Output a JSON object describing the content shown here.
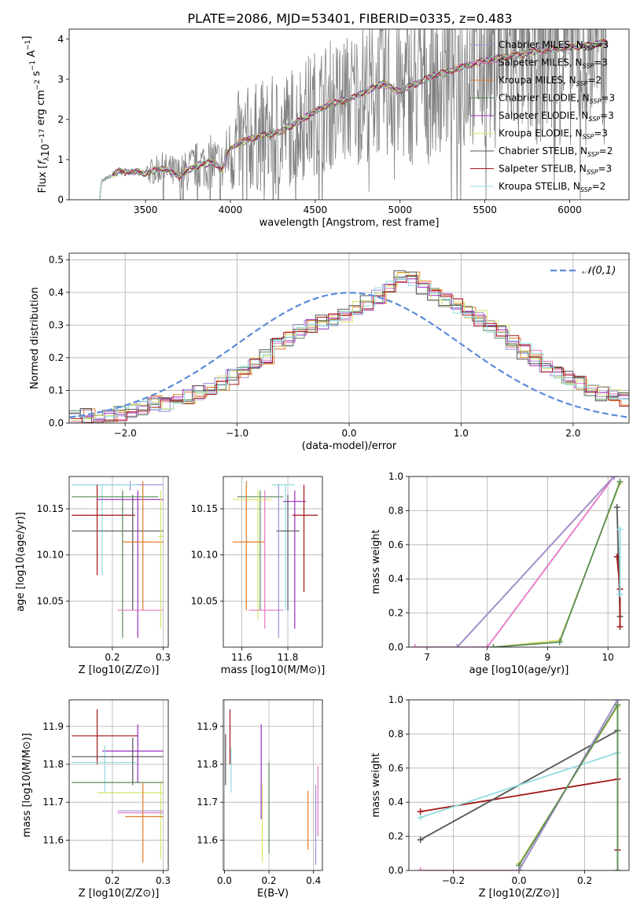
{
  "figure_title": "PLATE=2086, MJD=53401, FIBERID=0335, z=0.483",
  "models": [
    {
      "name": "Chabrier MILES",
      "nssp": "3",
      "color": "#9b8fd6"
    },
    {
      "name": "Salpeter MILES",
      "nssp": "3",
      "color": "#e377c2"
    },
    {
      "name": "Kroupa MILES",
      "nssp": "2",
      "color": "#e07b28"
    },
    {
      "name": "Chabrier ELODIE",
      "nssp": "3",
      "color": "#5a8a5a"
    },
    {
      "name": "Salpeter ELODIE",
      "nssp": "3",
      "color": "#9a2fbf"
    },
    {
      "name": "Kroupa ELODIE",
      "nssp": "3",
      "color": "#d9e36b"
    },
    {
      "name": "Chabrier STELIB",
      "nssp": "2",
      "color": "#555555"
    },
    {
      "name": "Salpeter STELIB",
      "nssp": "3",
      "color": "#a31515"
    },
    {
      "name": "Kroupa STELIB",
      "nssp": "2",
      "color": "#8fdbe0"
    }
  ],
  "nssp_prefix": "N",
  "nssp_sub": "SSP",
  "chart_data": [
    {
      "id": "spectrum",
      "type": "line",
      "xlabel": "wavelength [Angstrom, rest frame]",
      "ylabel": "Flux [f_λ 10^-17 erg cm^-2 s^-1 A^-1]",
      "xlim": [
        3050,
        6350
      ],
      "ylim": [
        0,
        4.25
      ],
      "xticks": [
        3500,
        4000,
        4500,
        5000,
        5500,
        6000
      ],
      "yticks": [
        0,
        1,
        2,
        3,
        4
      ],
      "grid": false,
      "legend": "top-right",
      "data_color": "#808080",
      "model_start_x": 3230,
      "model_points": [
        [
          3230,
          0
        ],
        [
          3240,
          0.45
        ],
        [
          3300,
          0.6
        ],
        [
          3350,
          0.72
        ],
        [
          3400,
          0.68
        ],
        [
          3450,
          0.7
        ],
        [
          3500,
          0.66
        ],
        [
          3600,
          0.78
        ],
        [
          3700,
          0.6
        ],
        [
          3800,
          0.85
        ],
        [
          3900,
          0.95
        ],
        [
          3950,
          0.75
        ],
        [
          4000,
          1.3
        ],
        [
          4100,
          1.5
        ],
        [
          4200,
          1.6
        ],
        [
          4300,
          1.7
        ],
        [
          4400,
          1.95
        ],
        [
          4500,
          2.2
        ],
        [
          4600,
          2.4
        ],
        [
          4700,
          2.5
        ],
        [
          4800,
          2.7
        ],
        [
          4900,
          2.9
        ],
        [
          5000,
          2.7
        ],
        [
          5100,
          2.9
        ],
        [
          5200,
          3.1
        ],
        [
          5300,
          3.2
        ],
        [
          5400,
          3.35
        ],
        [
          5500,
          3.45
        ],
        [
          5600,
          3.55
        ],
        [
          5700,
          3.6
        ],
        [
          5800,
          3.7
        ],
        [
          5900,
          3.75
        ],
        [
          6000,
          3.8
        ],
        [
          6100,
          3.85
        ],
        [
          6200,
          3.9
        ]
      ]
    },
    {
      "id": "residuals",
      "type": "histogram",
      "xlabel": "(data-model)/error",
      "ylabel": "Normed distribution",
      "xlim": [
        -2.5,
        2.5
      ],
      "ylim": [
        0,
        0.52
      ],
      "xticks": [
        -2,
        -1,
        0,
        1,
        2
      ],
      "yticks": [
        0,
        0.1,
        0.2,
        0.3,
        0.4,
        0.5
      ],
      "grid": true,
      "legend": "top-right",
      "reference_curve": {
        "label": "𝒩(0,1)",
        "color": "#5b8bd9"
      },
      "bin_edges_start": -2.5,
      "bin_width": 0.1,
      "base_heights": [
        0.02,
        0.02,
        0.02,
        0.025,
        0.03,
        0.04,
        0.05,
        0.06,
        0.06,
        0.07,
        0.08,
        0.09,
        0.1,
        0.12,
        0.14,
        0.16,
        0.18,
        0.2,
        0.24,
        0.26,
        0.28,
        0.3,
        0.31,
        0.32,
        0.33,
        0.35,
        0.37,
        0.39,
        0.42,
        0.45,
        0.44,
        0.42,
        0.4,
        0.38,
        0.36,
        0.34,
        0.32,
        0.3,
        0.28,
        0.25,
        0.22,
        0.2,
        0.18,
        0.16,
        0.14,
        0.12,
        0.1,
        0.09,
        0.08,
        0.07
      ]
    },
    {
      "id": "age_vs_Z",
      "type": "errorbar",
      "xlabel": "Z [log10(Z/Z⊙)]",
      "ylabel": "age  [log10(age/yr)]",
      "xlim": [
        0.115,
        0.31
      ],
      "ylim": [
        10.0,
        10.185
      ],
      "xticks": [
        0.2,
        0.3
      ],
      "yticks": [
        10.05,
        10.1,
        10.15
      ],
      "grid": true,
      "points": [
        {
          "m": 0,
          "x": 0.235,
          "xe": [
            0.12,
            0.3
          ],
          "y": 10.176,
          "ye": [
            10.17,
            10.18
          ]
        },
        {
          "m": 8,
          "x": 0.18,
          "xe": [
            0.12,
            0.25
          ],
          "y": 10.176,
          "ye": [
            10.078,
            10.176
          ]
        },
        {
          "m": 7,
          "x": 0.17,
          "xe": [
            0.12,
            0.245
          ],
          "y": 10.143,
          "ye": [
            10.078,
            10.176
          ]
        },
        {
          "m": 6,
          "x": 0.24,
          "xe": [
            0.12,
            0.3
          ],
          "y": 10.126,
          "ye": [
            10.04,
            10.165
          ]
        },
        {
          "m": 3,
          "x": 0.22,
          "xe": [
            0.12,
            0.29
          ],
          "y": 10.163,
          "ye": [
            10.01,
            10.17
          ]
        },
        {
          "m": 4,
          "x": 0.25,
          "xe": [
            0.17,
            0.3
          ],
          "y": 10.16,
          "ye": [
            10.01,
            10.17
          ]
        },
        {
          "m": 2,
          "x": 0.26,
          "xe": [
            0.22,
            0.3
          ],
          "y": 10.114,
          "ye": [
            10.04,
            10.18
          ]
        },
        {
          "m": 1,
          "x": 0.255,
          "xe": [
            0.21,
            0.3
          ],
          "y": 10.04,
          "ye": [
            10.04,
            10.04
          ]
        },
        {
          "m": 5,
          "x": 0.295,
          "xe": [
            0.29,
            0.3
          ],
          "y": 10.12,
          "ye": [
            10.02,
            10.17
          ]
        }
      ]
    },
    {
      "id": "age_vs_mass",
      "type": "errorbar",
      "xlabel": "mass [log10(M/M⊙)]",
      "ylabel": "",
      "xlim": [
        11.52,
        11.95
      ],
      "ylim": [
        10.0,
        10.185
      ],
      "xticks": [
        11.6,
        11.8
      ],
      "yticks": [
        10.05,
        10.1,
        10.15
      ],
      "grid": true,
      "points": [
        {
          "m": 8,
          "x": 11.79,
          "xe": [
            11.73,
            11.83
          ],
          "y": 10.176,
          "ye": [
            10.04,
            10.176
          ]
        },
        {
          "m": 3,
          "x": 11.68,
          "xe": [
            11.58,
            11.78
          ],
          "y": 10.163,
          "ye": [
            10.04,
            10.17
          ]
        },
        {
          "m": 5,
          "x": 11.67,
          "xe": [
            11.56,
            11.73
          ],
          "y": 10.16,
          "ye": [
            10.03,
            10.17
          ]
        },
        {
          "m": 4,
          "x": 11.83,
          "xe": [
            11.78,
            11.88
          ],
          "y": 10.158,
          "ye": [
            10.02,
            10.17
          ]
        },
        {
          "m": 7,
          "x": 11.87,
          "xe": [
            11.82,
            11.93
          ],
          "y": 10.143,
          "ye": [
            10.06,
            10.176
          ]
        },
        {
          "m": 6,
          "x": 11.8,
          "xe": [
            11.75,
            11.85
          ],
          "y": 10.126,
          "ye": [
            10.04,
            10.165
          ]
        },
        {
          "m": 2,
          "x": 11.62,
          "xe": [
            11.56,
            11.7
          ],
          "y": 10.114,
          "ye": [
            10.04,
            10.18
          ]
        },
        {
          "m": 1,
          "x": 11.7,
          "xe": [
            11.63,
            11.78
          ],
          "y": 10.04,
          "ye": [
            10.02,
            10.17
          ]
        },
        {
          "m": 0,
          "x": 11.76,
          "xe": [
            11.76,
            11.76
          ],
          "y": 10.17,
          "ye": [
            10.01,
            10.176
          ]
        }
      ]
    },
    {
      "id": "massweight_vs_age",
      "type": "line",
      "xlabel": "age  [log10(age/yr)]",
      "ylabel": "mass weight",
      "xlim": [
        6.7,
        10.35
      ],
      "ylim": [
        0,
        1.0
      ],
      "xticks": [
        7,
        8,
        9,
        10
      ],
      "yticks": [
        0,
        0.2,
        0.4,
        0.6,
        0.8,
        1.0
      ],
      "grid": true,
      "series": [
        {
          "m": 1,
          "pts": [
            [
              6.8,
              0
            ],
            [
              8,
              0
            ],
            [
              10.1,
              1.0
            ]
          ]
        },
        {
          "m": 2,
          "pts": [
            [
              7.5,
              0
            ],
            [
              10.1,
              1.0
            ]
          ]
        },
        {
          "m": 0,
          "pts": [
            [
              7.5,
              0
            ],
            [
              10.1,
              1.0
            ]
          ]
        },
        {
          "m": 5,
          "pts": [
            [
              8.1,
              0
            ],
            [
              9.2,
              0.04
            ],
            [
              10.2,
              0.96
            ]
          ]
        },
        {
          "m": 3,
          "pts": [
            [
              8.1,
              0
            ],
            [
              9.2,
              0.03
            ],
            [
              10.2,
              0.97
            ]
          ]
        },
        {
          "m": 6,
          "pts": [
            [
              10.15,
              0.82
            ],
            [
              10.2,
              0.18
            ]
          ]
        },
        {
          "m": 7,
          "pts": [
            [
              10.15,
              0.53
            ],
            [
              10.2,
              0.34
            ],
            [
              10.2,
              0.12
            ]
          ]
        },
        {
          "m": 8,
          "pts": [
            [
              10.2,
              0.69
            ],
            [
              10.2,
              0.31
            ]
          ]
        }
      ]
    },
    {
      "id": "mass_vs_Z",
      "type": "errorbar",
      "xlabel": "Z [log10(Z/Z⊙)]",
      "ylabel": "mass [log10(M/M⊙)]",
      "xlim": [
        0.115,
        0.31
      ],
      "ylim": [
        11.52,
        11.97
      ],
      "xticks": [
        0.2,
        0.3
      ],
      "yticks": [
        11.6,
        11.7,
        11.8,
        11.9
      ],
      "grid": true,
      "points": [
        {
          "m": 7,
          "x": 0.17,
          "xe": [
            0.12,
            0.25
          ],
          "y": 11.875,
          "ye": [
            11.8,
            11.945
          ]
        },
        {
          "m": 4,
          "x": 0.25,
          "xe": [
            0.18,
            0.3
          ],
          "y": 11.835,
          "ye": [
            11.75,
            11.905
          ]
        },
        {
          "m": 8,
          "x": 0.185,
          "xe": [
            0.12,
            0.25
          ],
          "y": 11.805,
          "ye": [
            11.725,
            11.85
          ]
        },
        {
          "m": 6,
          "x": 0.24,
          "xe": [
            0.12,
            0.3
          ],
          "y": 11.82,
          "ye": [
            11.745,
            11.87
          ]
        },
        {
          "m": 3,
          "x": 0.22,
          "xe": [
            0.12,
            0.3
          ],
          "y": 11.752,
          "ye": [
            11.752,
            11.752
          ]
        },
        {
          "m": 5,
          "x": 0.295,
          "xe": [
            0.17,
            0.3
          ],
          "y": 11.725,
          "ye": [
            11.55,
            11.75
          ]
        },
        {
          "m": 0,
          "x": 0.255,
          "xe": [
            0.21,
            0.3
          ],
          "y": 11.677,
          "ye": [
            11.677,
            11.677
          ]
        },
        {
          "m": 1,
          "x": 0.255,
          "xe": [
            0.21,
            0.3
          ],
          "y": 11.672,
          "ye": [
            11.672,
            11.672
          ]
        },
        {
          "m": 2,
          "x": 0.26,
          "xe": [
            0.225,
            0.3
          ],
          "y": 11.662,
          "ye": [
            11.54,
            11.75
          ]
        }
      ]
    },
    {
      "id": "mass_vs_EBV",
      "type": "errorbar",
      "xlabel": "E(B-V)",
      "ylabel": "",
      "xlim": [
        -0.005,
        0.44
      ],
      "ylim": [
        11.52,
        11.97
      ],
      "xticks": [
        0.0,
        0.2,
        0.4
      ],
      "yticks": [
        11.6,
        11.7,
        11.8,
        11.9
      ],
      "grid": true,
      "points": [
        {
          "m": 6,
          "x": 0.005,
          "xe": [
            0.005,
            0.005
          ],
          "y": 11.82,
          "ye": [
            11.745,
            11.88
          ]
        },
        {
          "m": 7,
          "x": 0.025,
          "xe": [
            0.025,
            0.025
          ],
          "y": 11.875,
          "ye": [
            11.8,
            11.945
          ]
        },
        {
          "m": 8,
          "x": 0.03,
          "xe": [
            0.03,
            0.03
          ],
          "y": 11.8,
          "ye": [
            11.725,
            11.845
          ]
        },
        {
          "m": 4,
          "x": 0.165,
          "xe": [
            0.165,
            0.165
          ],
          "y": 11.835,
          "ye": [
            11.655,
            11.905
          ]
        },
        {
          "m": 5,
          "x": 0.17,
          "xe": [
            0.17,
            0.17
          ],
          "y": 11.725,
          "ye": [
            11.54,
            11.75
          ]
        },
        {
          "m": 3,
          "x": 0.2,
          "xe": [
            0.2,
            0.2
          ],
          "y": 11.75,
          "ye": [
            11.565,
            11.805
          ]
        },
        {
          "m": 2,
          "x": 0.375,
          "xe": [
            0.375,
            0.375
          ],
          "y": 11.66,
          "ye": [
            11.575,
            11.73
          ]
        },
        {
          "m": 0,
          "x": 0.41,
          "xe": [
            0.41,
            0.41
          ],
          "y": 11.675,
          "ye": [
            11.535,
            11.745
          ]
        },
        {
          "m": 1,
          "x": 0.42,
          "xe": [
            0.42,
            0.42
          ],
          "y": 11.68,
          "ye": [
            11.61,
            11.795
          ]
        }
      ]
    },
    {
      "id": "massweight_vs_Z",
      "type": "line",
      "xlabel": "Z [log10(Z/Z⊙)]",
      "ylabel": "mass weight",
      "xlim": [
        -0.335,
        0.335
      ],
      "ylim": [
        0,
        1.0
      ],
      "xticks": [
        -0.2,
        0.0,
        0.2
      ],
      "yticks": [
        0,
        0.2,
        0.4,
        0.6,
        0.8,
        1.0
      ],
      "grid": true,
      "series": [
        {
          "m": 7,
          "pts": [
            [
              -0.3,
              0.345
            ],
            [
              0.3,
              0.535
            ],
            [
              0.3,
              0.12
            ]
          ]
        },
        {
          "m": 6,
          "pts": [
            [
              -0.3,
              0.18
            ],
            [
              0.3,
              0.82
            ]
          ]
        },
        {
          "m": 8,
          "pts": [
            [
              -0.3,
              0.31
            ],
            [
              0.3,
              0.69
            ]
          ]
        },
        {
          "m": 1,
          "pts": [
            [
              -0.3,
              0
            ],
            [
              0.0,
              0
            ],
            [
              0.3,
              1.0
            ]
          ]
        },
        {
          "m": 2,
          "pts": [
            [
              0.0,
              0
            ],
            [
              0.3,
              1.0
            ]
          ]
        },
        {
          "m": 0,
          "pts": [
            [
              0.0,
              0
            ],
            [
              0.3,
              1.0
            ]
          ]
        },
        {
          "m": 5,
          "pts": [
            [
              0.0,
              0.04
            ],
            [
              0.3,
              0.96
            ],
            [
              0.3,
              0
            ]
          ]
        },
        {
          "m": 3,
          "pts": [
            [
              0.0,
              0.03
            ],
            [
              0.3,
              0.97
            ],
            [
              0.3,
              0
            ]
          ]
        }
      ]
    }
  ]
}
